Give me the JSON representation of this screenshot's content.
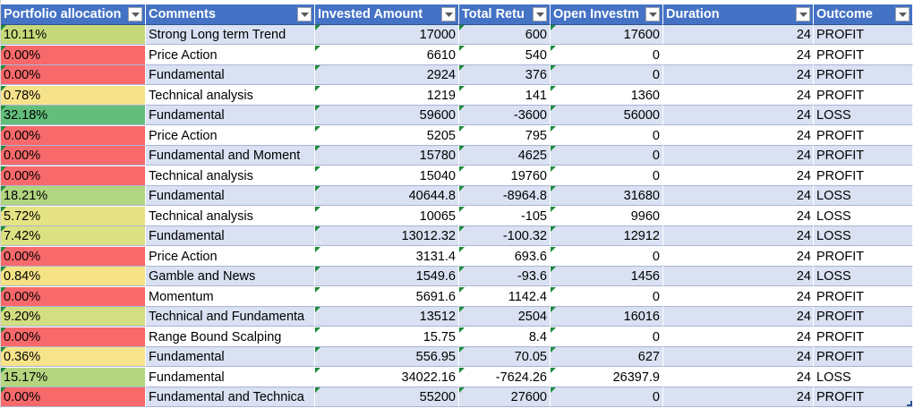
{
  "table": {
    "headers": [
      "Portfolio allocation",
      "Comments",
      "Invested Amount",
      "Total Retu",
      "Open Investm",
      "Duration",
      "Outcome"
    ],
    "rows": [
      [
        "10.11%",
        "Strong Long term Trend",
        "17000",
        "600",
        "17600",
        "24",
        "PROFIT"
      ],
      [
        "0.00%",
        "Price Action",
        "6610",
        "540",
        "0",
        "24",
        "PROFIT"
      ],
      [
        "0.00%",
        "Fundamental",
        "2924",
        "376",
        "0",
        "24",
        "PROFIT"
      ],
      [
        "0.78%",
        "Technical analysis",
        "1219",
        "141",
        "1360",
        "24",
        "PROFIT"
      ],
      [
        "32.18%",
        "Fundamental",
        "59600",
        "-3600",
        "56000",
        "24",
        "LOSS"
      ],
      [
        "0.00%",
        "Price Action",
        "5205",
        "795",
        "0",
        "24",
        "PROFIT"
      ],
      [
        "0.00%",
        "Fundamental and Moment",
        "15780",
        "4625",
        "0",
        "24",
        "PROFIT"
      ],
      [
        "0.00%",
        "Technical analysis",
        "15040",
        "19760",
        "0",
        "24",
        "PROFIT"
      ],
      [
        "18.21%",
        "Fundamental",
        "40644.8",
        "-8964.8",
        "31680",
        "24",
        "LOSS"
      ],
      [
        "5.72%",
        "Technical analysis",
        "10065",
        "-105",
        "9960",
        "24",
        "LOSS"
      ],
      [
        "7.42%",
        "Fundamental",
        "13012.32",
        "-100.32",
        "12912",
        "24",
        "LOSS"
      ],
      [
        "0.00%",
        "Price Action",
        "3131.4",
        "693.6",
        "0",
        "24",
        "PROFIT"
      ],
      [
        "0.84%",
        "Gamble and News",
        "1549.6",
        "-93.6",
        "1456",
        "24",
        "LOSS"
      ],
      [
        "0.00%",
        "Momentum",
        "5691.6",
        "1142.4",
        "0",
        "24",
        "PROFIT"
      ],
      [
        "9.20%",
        "Technical and Fundamenta",
        "13512",
        "2504",
        "16016",
        "24",
        "PROFIT"
      ],
      [
        "0.00%",
        "Range Bound Scalping",
        "15.75",
        "8.4",
        "0",
        "24",
        "PROFIT"
      ],
      [
        "0.36%",
        "Fundamental",
        "556.95",
        "70.05",
        "627",
        "24",
        "PROFIT"
      ],
      [
        "15.17%",
        "Fundamental",
        "34022.16",
        "-7624.26",
        "26397.9",
        "24",
        "LOSS"
      ],
      [
        "0.00%",
        "Fundamental and Technica",
        "55200",
        "27600",
        "0",
        "24",
        "PROFIT"
      ]
    ],
    "allocation_colors": [
      "#c6d97a",
      "#f8696b",
      "#f8696b",
      "#f6e28a",
      "#63be7b",
      "#f8696b",
      "#f8696b",
      "#f8696b",
      "#b1d580",
      "#e5e383",
      "#dbe182",
      "#f8696b",
      "#f4e285",
      "#f8696b",
      "#d2de81",
      "#f8696b",
      "#f7e38a",
      "#b5d67f",
      "#f8696b"
    ]
  },
  "colors": {
    "header_fill": "#4472c4",
    "band_light": "#d9e1f2",
    "error_indicator": "#1e8c3c"
  },
  "icons": {
    "header_filter": "filter-dropdown-icon",
    "table_resize": "resize-handle-icon"
  }
}
